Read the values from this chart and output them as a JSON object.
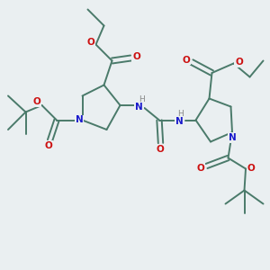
{
  "bg_color": "#eaeff1",
  "bond_color": "#4a7a6a",
  "N_color": "#1a1acc",
  "O_color": "#cc1010",
  "H_color": "#888888",
  "line_width": 1.4,
  "fig_size": [
    3.0,
    3.0
  ],
  "dpi": 100,
  "xlim": [
    0,
    10
  ],
  "ylim": [
    0,
    10
  ]
}
